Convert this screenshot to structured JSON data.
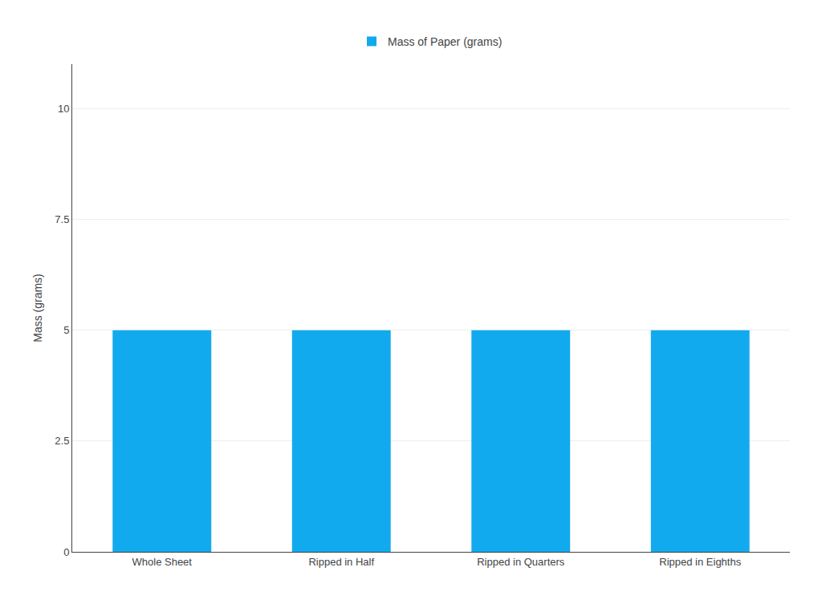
{
  "chart_data": {
    "type": "bar",
    "categories": [
      "Whole Sheet",
      "Ripped in Half",
      "Ripped in Quarters",
      "Ripped in Eighths"
    ],
    "series": [
      {
        "name": "Mass of Paper (grams)",
        "color": "#12AAEE",
        "values": [
          5.0,
          5.0,
          5.0,
          5.0
        ]
      }
    ],
    "ylabel": "Mass (grams)",
    "ylim": [
      0,
      11
    ],
    "yticks": [
      0,
      2.5,
      5.0,
      7.5,
      10
    ],
    "grid": true,
    "legend": "top"
  }
}
